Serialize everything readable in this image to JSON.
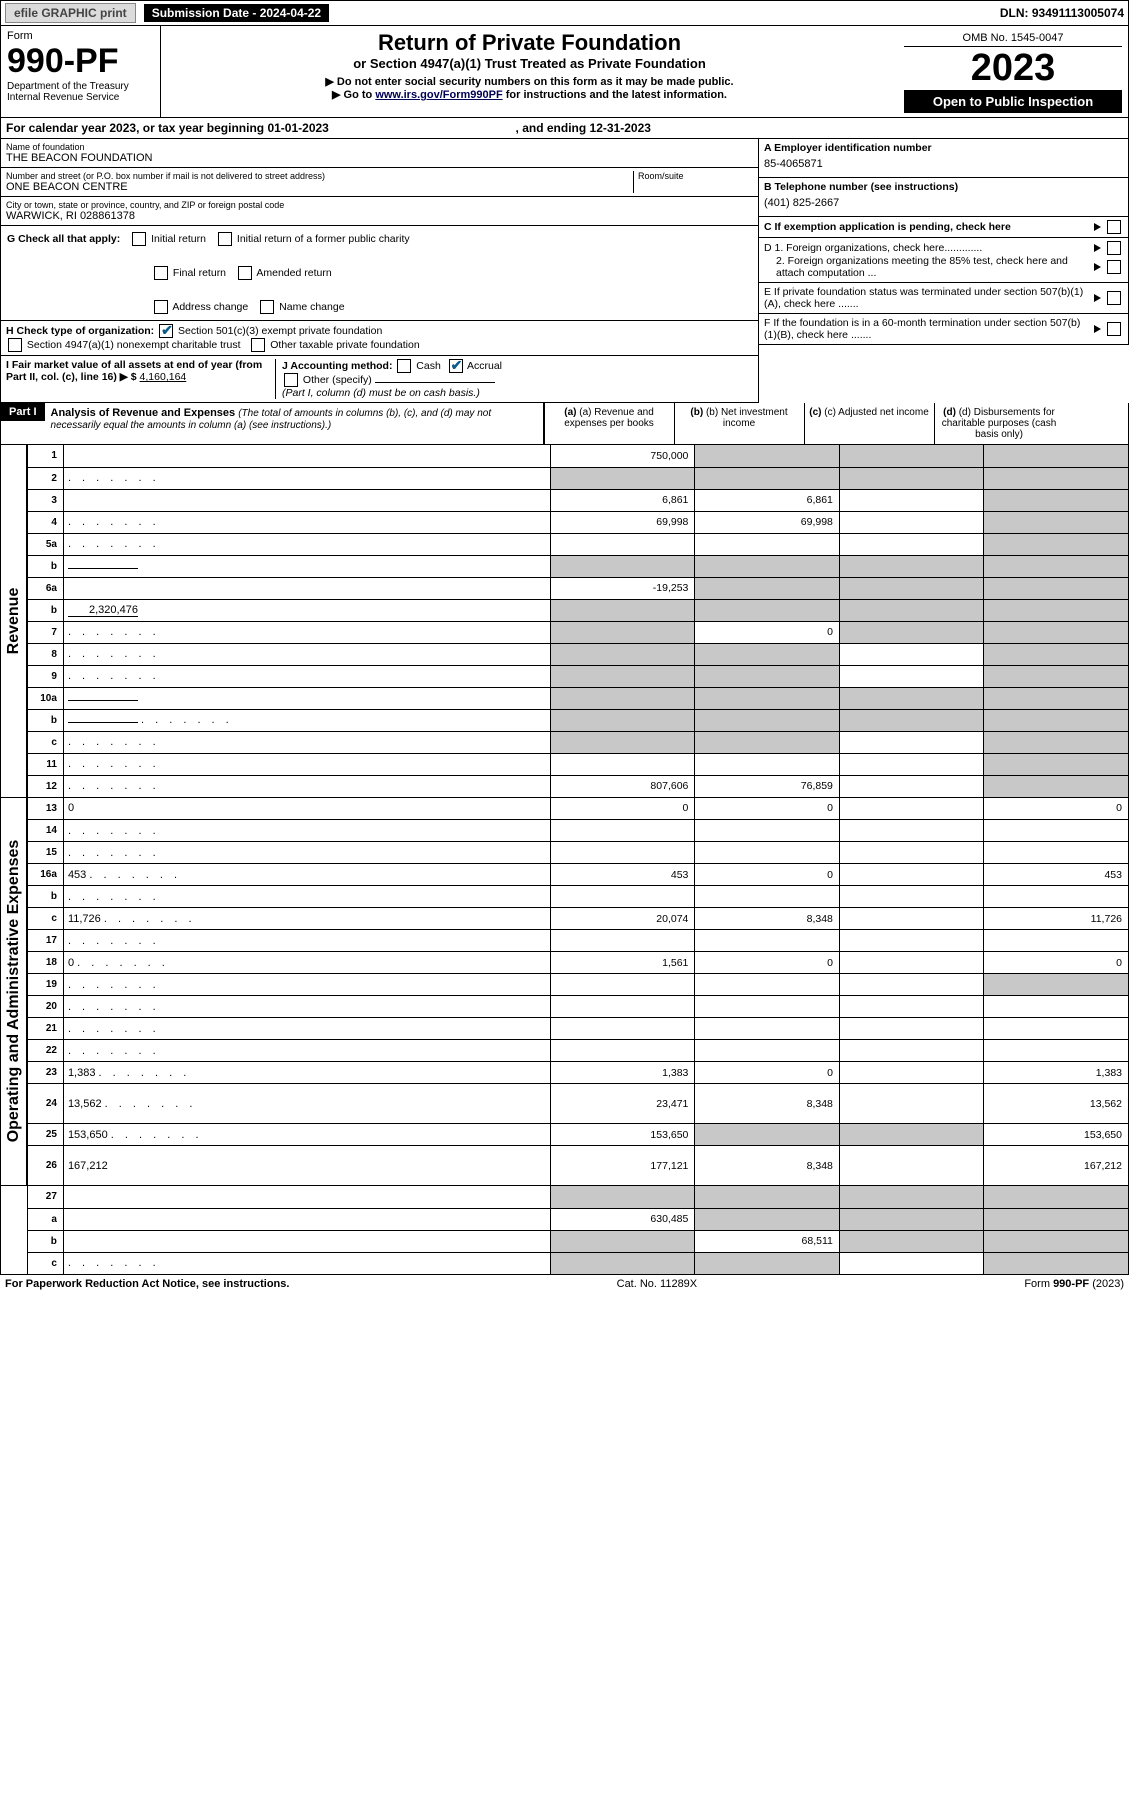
{
  "topbar": {
    "efile": "efile GRAPHIC print",
    "sub_date_label": "Submission Date - 2024-04-22",
    "dln": "DLN: 93491113005074"
  },
  "header": {
    "form_label": "Form",
    "form_num": "990-PF",
    "dept1": "Department of the Treasury",
    "dept2": "Internal Revenue Service",
    "title": "Return of Private Foundation",
    "subtitle": "or Section 4947(a)(1) Trust Treated as Private Foundation",
    "instr1": "▶ Do not enter social security numbers on this form as it may be made public.",
    "instr2_pre": "▶ Go to ",
    "instr2_link": "www.irs.gov/Form990PF",
    "instr2_post": " for instructions and the latest information.",
    "omb": "OMB No. 1545-0047",
    "year": "2023",
    "open_pub": "Open to Public Inspection"
  },
  "calendar": {
    "pre": "For calendar year 2023, or tax year beginning ",
    "begin": "01-01-2023",
    "mid": " , and ending ",
    "end": "12-31-2023"
  },
  "A": {
    "name_label": "Name of foundation",
    "name": "THE BEACON FOUNDATION",
    "addr_label": "Number and street (or P.O. box number if mail is not delivered to street address)",
    "addr": "ONE BEACON CENTRE",
    "room_label": "Room/suite",
    "city_label": "City or town, state or province, country, and ZIP or foreign postal code",
    "city": "WARWICK, RI  028861378",
    "ein_label": "A Employer identification number",
    "ein": "85-4065871",
    "phone_label": "B Telephone number (see instructions)",
    "phone": "(401) 825-2667",
    "c_label": "C If exemption application is pending, check here"
  },
  "G": {
    "label": "G Check all that apply:",
    "opts": [
      "Initial return",
      "Final return",
      "Address change",
      "Initial return of a former public charity",
      "Amended return",
      "Name change"
    ],
    "D1": "D 1. Foreign organizations, check here.............",
    "D2": "2. Foreign organizations meeting the 85% test, check here and attach computation ...",
    "E": "E  If private foundation status was terminated under section 507(b)(1)(A), check here .......",
    "F": "F  If the foundation is in a 60-month termination under section 507(b)(1)(B), check here ......."
  },
  "H": {
    "label": "H Check type of organization:",
    "opt1": "Section 501(c)(3) exempt private foundation",
    "opt2": "Section 4947(a)(1) nonexempt charitable trust",
    "opt3": "Other taxable private foundation"
  },
  "I": {
    "label": "I Fair market value of all assets at end of year (from Part II, col. (c), line 16) ▶ $",
    "val": "4,160,164"
  },
  "J": {
    "label": "J Accounting method:",
    "cash": "Cash",
    "accrual": "Accrual",
    "other": "Other (specify)",
    "note": "(Part I, column (d) must be on cash basis.)"
  },
  "part1": {
    "hdr": "Part I",
    "title": "Analysis of Revenue and Expenses",
    "title_note": " (The total of amounts in columns (b), (c), and (d) may not necessarily equal the amounts in column (a) (see instructions).)",
    "col_a": "(a) Revenue and expenses per books",
    "col_b": "(b) Net investment income",
    "col_c": "(c) Adjusted net income",
    "col_d": "(d) Disbursements for charitable purposes (cash basis only)"
  },
  "sections": {
    "revenue": "Revenue",
    "expenses": "Operating and Administrative Expenses"
  },
  "rows": [
    {
      "n": "1",
      "d": "",
      "a": "750,000",
      "b": "",
      "c": "",
      "sb": true,
      "sc": true,
      "sd": true
    },
    {
      "n": "2",
      "d": "",
      "a": "",
      "b": "",
      "c": "",
      "sa": true,
      "sb": true,
      "sc": true,
      "sd": true,
      "dots": true
    },
    {
      "n": "3",
      "d": "",
      "a": "6,861",
      "b": "6,861",
      "c": "",
      "sd": true
    },
    {
      "n": "4",
      "d": "",
      "a": "69,998",
      "b": "69,998",
      "c": "",
      "sd": true,
      "dots": true
    },
    {
      "n": "5a",
      "d": "",
      "a": "",
      "b": "",
      "c": "",
      "sd": true,
      "dots": true
    },
    {
      "n": "b",
      "d": "",
      "a": "",
      "b": "",
      "c": "",
      "sa": true,
      "sb": true,
      "sc": true,
      "sd": true,
      "inline": true
    },
    {
      "n": "6a",
      "d": "",
      "a": "-19,253",
      "b": "",
      "c": "",
      "sb": true,
      "sc": true,
      "sd": true
    },
    {
      "n": "b",
      "d": "",
      "a": "",
      "b": "",
      "c": "",
      "sa": true,
      "sb": true,
      "sc": true,
      "sd": true,
      "inline": true,
      "inlineval": "2,320,476"
    },
    {
      "n": "7",
      "d": "",
      "a": "",
      "b": "0",
      "c": "",
      "sa": true,
      "sc": true,
      "sd": true,
      "dots": true
    },
    {
      "n": "8",
      "d": "",
      "a": "",
      "b": "",
      "c": "",
      "sa": true,
      "sb": true,
      "sd": true,
      "dots": true
    },
    {
      "n": "9",
      "d": "",
      "a": "",
      "b": "",
      "c": "",
      "sa": true,
      "sb": true,
      "sd": true,
      "dots": true
    },
    {
      "n": "10a",
      "d": "",
      "a": "",
      "b": "",
      "c": "",
      "sa": true,
      "sb": true,
      "sc": true,
      "sd": true,
      "inline": true
    },
    {
      "n": "b",
      "d": "",
      "a": "",
      "b": "",
      "c": "",
      "sa": true,
      "sb": true,
      "sc": true,
      "sd": true,
      "inline": true,
      "dots": true
    },
    {
      "n": "c",
      "d": "",
      "a": "",
      "b": "",
      "c": "",
      "sa": true,
      "sb": true,
      "sd": true,
      "dots": true
    },
    {
      "n": "11",
      "d": "",
      "a": "",
      "b": "",
      "c": "",
      "sd": true,
      "dots": true
    },
    {
      "n": "12",
      "d": "",
      "a": "807,606",
      "b": "76,859",
      "c": "",
      "sd": true,
      "dots": true
    }
  ],
  "exp_rows": [
    {
      "n": "13",
      "d": "0",
      "a": "0",
      "b": "0",
      "c": ""
    },
    {
      "n": "14",
      "d": "",
      "a": "",
      "b": "",
      "c": "",
      "dots": true
    },
    {
      "n": "15",
      "d": "",
      "a": "",
      "b": "",
      "c": "",
      "dots": true
    },
    {
      "n": "16a",
      "d": "453",
      "a": "453",
      "b": "0",
      "c": "",
      "dots": true
    },
    {
      "n": "b",
      "d": "",
      "a": "",
      "b": "",
      "c": "",
      "dots": true
    },
    {
      "n": "c",
      "d": "11,726",
      "a": "20,074",
      "b": "8,348",
      "c": "",
      "dots": true
    },
    {
      "n": "17",
      "d": "",
      "a": "",
      "b": "",
      "c": "",
      "dots": true
    },
    {
      "n": "18",
      "d": "0",
      "a": "1,561",
      "b": "0",
      "c": "",
      "dots": true
    },
    {
      "n": "19",
      "d": "",
      "a": "",
      "b": "",
      "c": "",
      "sd": true,
      "dots": true
    },
    {
      "n": "20",
      "d": "",
      "a": "",
      "b": "",
      "c": "",
      "dots": true
    },
    {
      "n": "21",
      "d": "",
      "a": "",
      "b": "",
      "c": "",
      "dots": true
    },
    {
      "n": "22",
      "d": "",
      "a": "",
      "b": "",
      "c": "",
      "dots": true
    },
    {
      "n": "23",
      "d": "1,383",
      "a": "1,383",
      "b": "0",
      "c": "",
      "dots": true
    },
    {
      "n": "24",
      "d": "13,562",
      "a": "23,471",
      "b": "8,348",
      "c": "",
      "dots": true,
      "tall": true
    },
    {
      "n": "25",
      "d": "153,650",
      "a": "153,650",
      "b": "",
      "c": "",
      "sb": true,
      "sc": true,
      "dots": true
    },
    {
      "n": "26",
      "d": "167,212",
      "a": "177,121",
      "b": "8,348",
      "c": "",
      "tall": true
    }
  ],
  "bottom_rows": [
    {
      "n": "27",
      "d": "",
      "a": "",
      "b": "",
      "c": "",
      "sa": true,
      "sb": true,
      "sc": true,
      "sd": true
    },
    {
      "n": "a",
      "d": "",
      "a": "630,485",
      "b": "",
      "c": "",
      "sb": true,
      "sc": true,
      "sd": true
    },
    {
      "n": "b",
      "d": "",
      "a": "",
      "b": "68,511",
      "c": "",
      "sa": true,
      "sc": true,
      "sd": true
    },
    {
      "n": "c",
      "d": "",
      "a": "",
      "b": "",
      "c": "",
      "sa": true,
      "sb": true,
      "sd": true,
      "dots": true
    }
  ],
  "footer": {
    "left": "For Paperwork Reduction Act Notice, see instructions.",
    "mid": "Cat. No. 11289X",
    "right": "Form 990-PF (2023)"
  },
  "colors": {
    "shade": "#c8c8c8",
    "link": "#003366"
  }
}
